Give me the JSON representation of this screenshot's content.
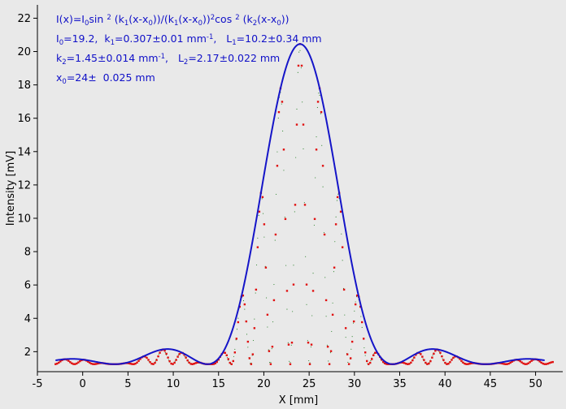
{
  "chart_data": {
    "type": "line",
    "xlabel": "X [mm]",
    "ylabel": "Intensity [mV]",
    "xlim": [
      -5,
      53
    ],
    "ylim": [
      0.8,
      22.8
    ],
    "x_ticks": [
      -5,
      0,
      5,
      10,
      15,
      20,
      25,
      30,
      35,
      40,
      45,
      50
    ],
    "y_ticks": [
      2,
      4,
      6,
      8,
      10,
      12,
      14,
      16,
      18,
      20,
      22
    ],
    "grid": false,
    "background": "#e9e9e9",
    "annotation": {
      "line1": [
        {
          "t": "I(x)=I"
        },
        {
          "t": "0",
          "sub": true
        },
        {
          "t": "sin "
        },
        {
          "t": "2",
          "sup": true
        },
        {
          "t": " (k"
        },
        {
          "t": "1",
          "sub": true
        },
        {
          "t": "(x-x"
        },
        {
          "t": "0",
          "sub": true
        },
        {
          "t": "))/(k"
        },
        {
          "t": "1",
          "sub": true
        },
        {
          "t": "(x-x"
        },
        {
          "t": "0",
          "sub": true
        },
        {
          "t": "))"
        },
        {
          "t": "2",
          "sup": true
        },
        {
          "t": "cos "
        },
        {
          "t": "2",
          "sup": true
        },
        {
          "t": " (k"
        },
        {
          "t": "2",
          "sub": true
        },
        {
          "t": "(x-x"
        },
        {
          "t": "0",
          "sub": true
        },
        {
          "t": "))"
        }
      ],
      "line2": [
        {
          "t": "I"
        },
        {
          "t": "0",
          "sub": true
        },
        {
          "t": "=19.2,  k"
        },
        {
          "t": "1",
          "sub": true
        },
        {
          "t": "=0.307±0.01 mm"
        },
        {
          "t": "-1",
          "sup": true
        },
        {
          "t": ",   L"
        },
        {
          "t": "1",
          "sub": true
        },
        {
          "t": "=10.2±0.34 mm"
        }
      ],
      "line3": [
        {
          "t": "k"
        },
        {
          "t": "2",
          "sub": true
        },
        {
          "t": "=1.45±0.014 mm"
        },
        {
          "t": "-1",
          "sup": true
        },
        {
          "t": ",   L"
        },
        {
          "t": "2",
          "sub": true
        },
        {
          "t": "=2.17±0.022 mm"
        }
      ],
      "line4": [
        {
          "t": "x"
        },
        {
          "t": "0",
          "sub": true
        },
        {
          "t": "=24±  0.025 mm"
        }
      ]
    },
    "model": {
      "I0": 19.2,
      "k1": 0.307,
      "k2": 1.45,
      "x0": 24,
      "baseline": 1.25
    },
    "series": [
      {
        "style": "dotted",
        "color": "#e01010",
        "x_start": -3,
        "x_end": 52,
        "step": 0.18
      },
      {
        "style": "dotted",
        "color": "#1a7a1a",
        "x_start": -3,
        "x_end": 52,
        "step": 0.12
      },
      {
        "style": "line",
        "color": "#1515c8",
        "x_start": -3,
        "x_end": 51
      }
    ]
  }
}
